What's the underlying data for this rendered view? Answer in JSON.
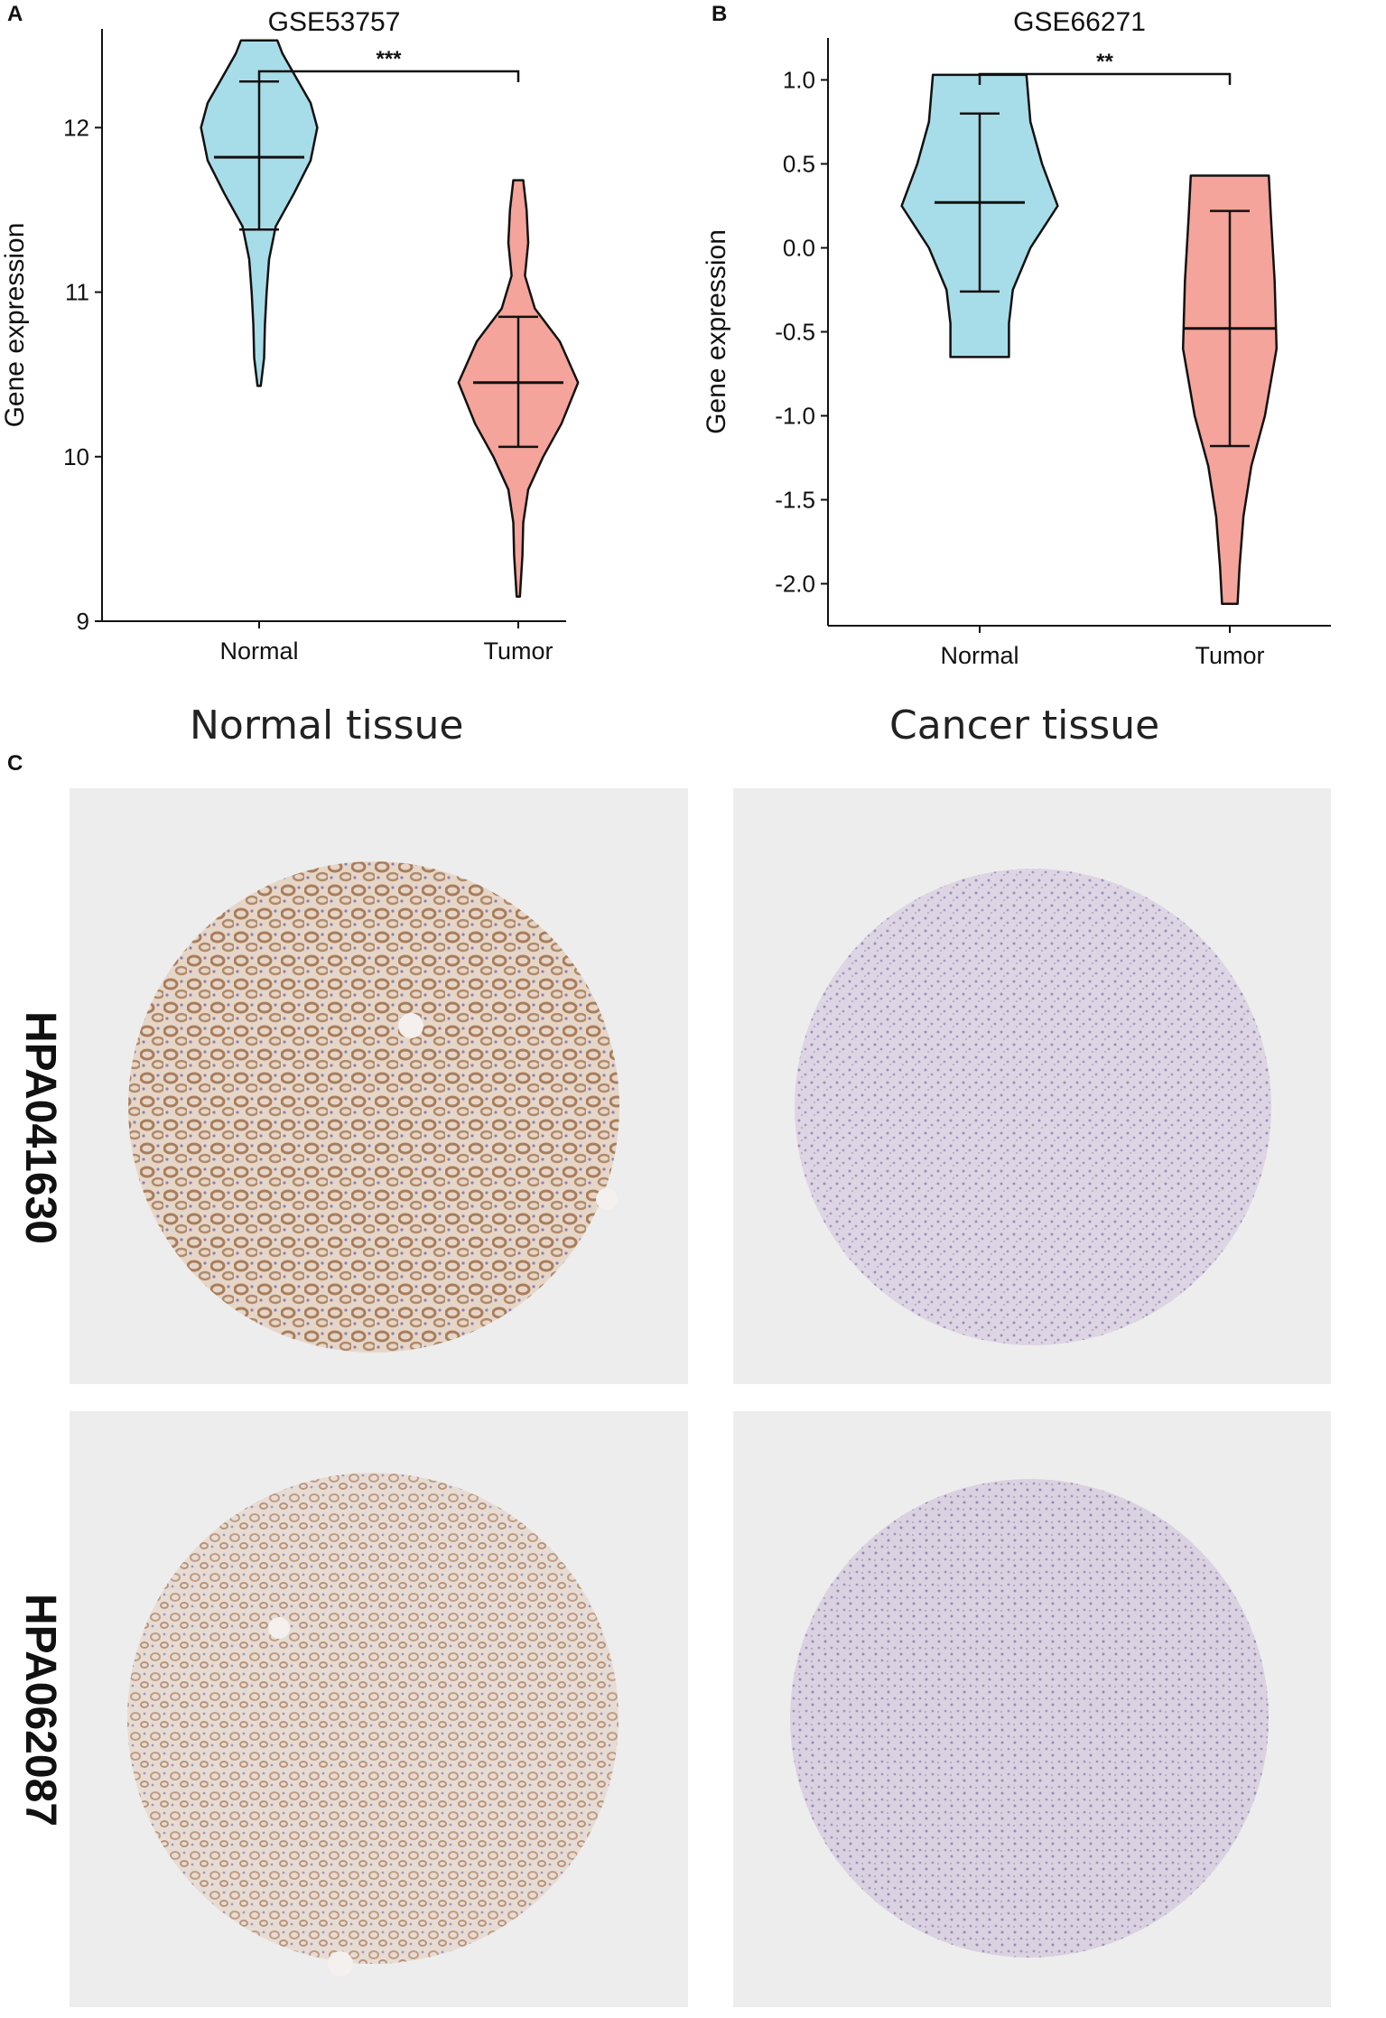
{
  "panels": {
    "a": "A",
    "b": "B",
    "c": "C"
  },
  "chart_data": [
    {
      "type": "violin",
      "title": "GSE53757",
      "xlabel": "",
      "ylabel": "Gene expression",
      "categories": [
        "Normal",
        "Tumor"
      ],
      "yticks": [
        9,
        10,
        11,
        12
      ],
      "ylim": [
        9,
        12.6
      ],
      "significance": "***",
      "series": [
        {
          "name": "Normal",
          "color": "#a7dde8",
          "median": 11.82,
          "q_low": 11.38,
          "q_high": 12.28,
          "min": 10.43,
          "max": 12.53,
          "profile": [
            [
              10.43,
              0.02
            ],
            [
              10.6,
              0.06
            ],
            [
              10.8,
              0.07
            ],
            [
              11.0,
              0.09
            ],
            [
              11.2,
              0.12
            ],
            [
              11.4,
              0.2
            ],
            [
              11.6,
              0.42
            ],
            [
              11.8,
              0.62
            ],
            [
              12.0,
              0.7
            ],
            [
              12.15,
              0.62
            ],
            [
              12.3,
              0.45
            ],
            [
              12.45,
              0.28
            ],
            [
              12.53,
              0.22
            ]
          ]
        },
        {
          "name": "Tumor",
          "color": "#f4a49a",
          "median": 10.45,
          "q_low": 10.06,
          "q_high": 10.85,
          "min": 9.15,
          "max": 11.68,
          "profile": [
            [
              9.15,
              0.02
            ],
            [
              9.4,
              0.05
            ],
            [
              9.6,
              0.06
            ],
            [
              9.8,
              0.12
            ],
            [
              10.0,
              0.3
            ],
            [
              10.2,
              0.52
            ],
            [
              10.45,
              0.72
            ],
            [
              10.7,
              0.5
            ],
            [
              10.9,
              0.2
            ],
            [
              11.1,
              0.08
            ],
            [
              11.3,
              0.12
            ],
            [
              11.5,
              0.1
            ],
            [
              11.68,
              0.06
            ]
          ]
        }
      ]
    },
    {
      "type": "violin",
      "title": "GSE66271",
      "xlabel": "",
      "ylabel": "Gene expression",
      "categories": [
        "Normal",
        "Tumor"
      ],
      "yticks": [
        -2.0,
        -1.5,
        -1.0,
        -0.5,
        0.0,
        0.5,
        1.0
      ],
      "ytick_labels": [
        "-2.0",
        "-1.5",
        "-1.0",
        "-0.5",
        "0.0",
        "0.5",
        "1.0"
      ],
      "ylim": [
        -2.25,
        1.25
      ],
      "significance": "**",
      "series": [
        {
          "name": "Normal",
          "color": "#a7dde8",
          "median": 0.27,
          "q_low": -0.26,
          "q_high": 0.8,
          "min": -0.65,
          "max": 1.03,
          "profile": [
            [
              -0.65,
              0.3
            ],
            [
              -0.45,
              0.3
            ],
            [
              -0.25,
              0.34
            ],
            [
              0.0,
              0.52
            ],
            [
              0.25,
              0.8
            ],
            [
              0.5,
              0.64
            ],
            [
              0.75,
              0.52
            ],
            [
              1.03,
              0.48
            ]
          ]
        },
        {
          "name": "Tumor",
          "color": "#f4a49a",
          "median": -0.48,
          "q_low": -1.18,
          "q_high": 0.22,
          "min": -2.12,
          "max": 0.43,
          "profile": [
            [
              -2.12,
              0.08
            ],
            [
              -1.9,
              0.1
            ],
            [
              -1.6,
              0.14
            ],
            [
              -1.3,
              0.22
            ],
            [
              -1.0,
              0.36
            ],
            [
              -0.6,
              0.48
            ],
            [
              -0.2,
              0.46
            ],
            [
              0.2,
              0.42
            ],
            [
              0.43,
              0.4
            ]
          ]
        }
      ]
    }
  ],
  "tissue_headers": {
    "normal": "Normal tissue",
    "cancer": "Cancer tissue"
  },
  "antibodies": [
    "HPA041630",
    "HPA062087"
  ],
  "colors": {
    "stain_brown": "#b08a6a",
    "hematoxylin": "#9a8fb8",
    "background": "#eeeded"
  }
}
